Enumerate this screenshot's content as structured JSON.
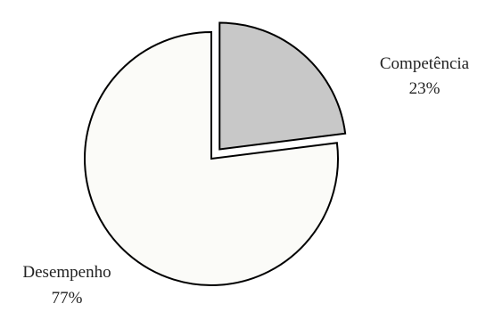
{
  "chart_data": {
    "type": "pie",
    "categories": [
      "Competência",
      "Desempenho"
    ],
    "values": [
      23,
      77
    ],
    "value_labels": [
      "23%",
      "77%"
    ],
    "exploded": [
      "Competência"
    ],
    "colors": {
      "Competência": "#c8c8c8",
      "Desempenho": "#fbfbf8",
      "stroke": "#000000"
    },
    "legend": "none"
  }
}
